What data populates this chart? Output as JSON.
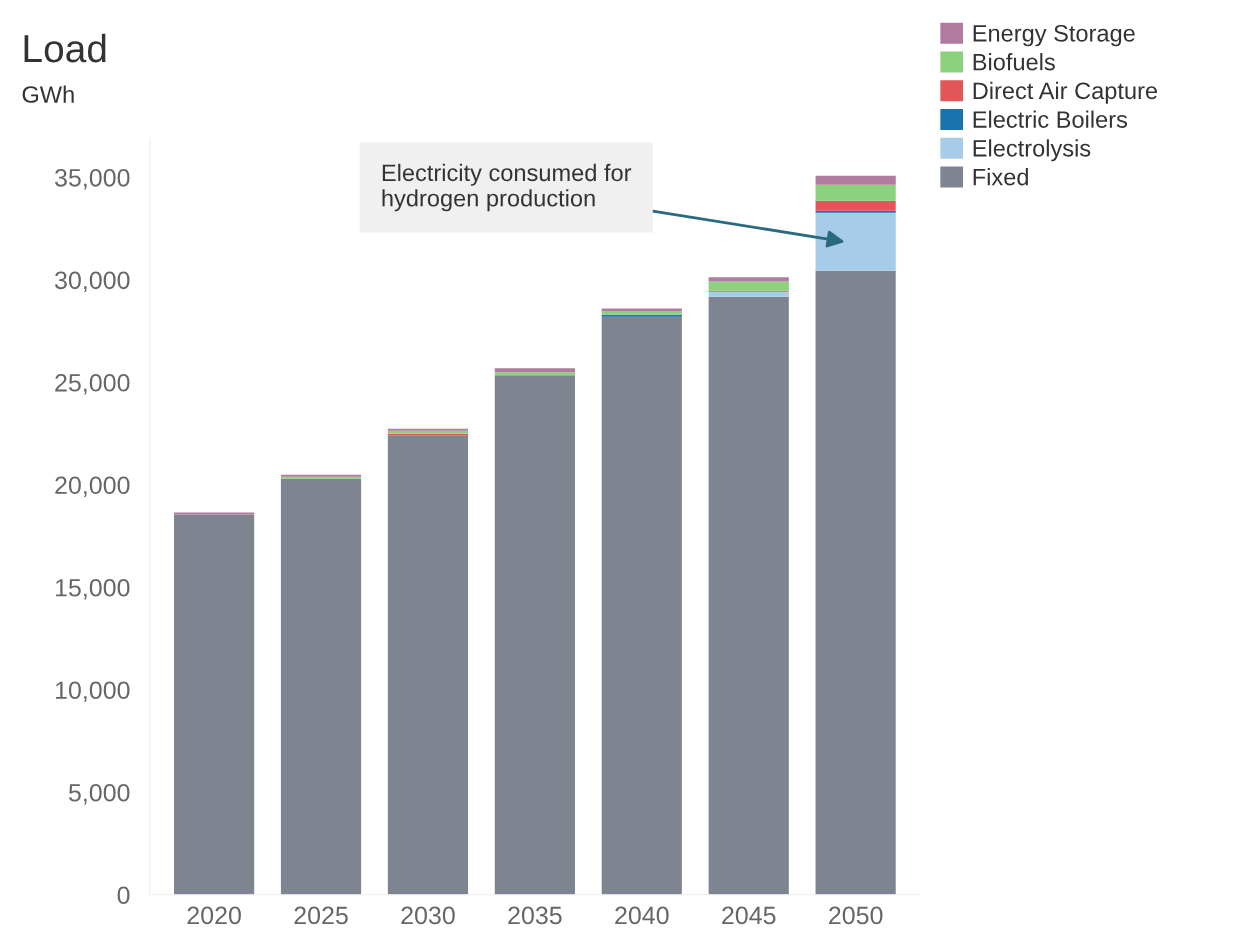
{
  "chart_data": {
    "type": "bar",
    "title": "Load",
    "subtitle": "GWh",
    "stacked": true,
    "categories": [
      "2020",
      "2025",
      "2030",
      "2035",
      "2040",
      "2045",
      "2050"
    ],
    "series": [
      {
        "name": "Fixed",
        "color": "#7f8590",
        "values": [
          18550,
          20290,
          22390,
          25340,
          28200,
          29170,
          30440
        ]
      },
      {
        "name": "Electrolysis",
        "color": "#a6cce8",
        "values": [
          null,
          null,
          null,
          null,
          null,
          250,
          2830
        ]
      },
      {
        "name": "Electric Boilers",
        "color": "#1a72ae",
        "values": [
          null,
          null,
          null,
          null,
          100,
          null,
          100
        ]
      },
      {
        "name": "Direct Air Capture",
        "color": "#e15759",
        "values": [
          null,
          null,
          100,
          null,
          null,
          50,
          490
        ]
      },
      {
        "name": "Biofuels",
        "color": "#8cd17d",
        "values": [
          null,
          100,
          150,
          150,
          150,
          450,
          780
        ]
      },
      {
        "name": "Energy Storage",
        "color": "#b07aa1",
        "values": [
          100,
          100,
          100,
          200,
          150,
          200,
          440
        ]
      }
    ],
    "ylim": [
      0,
      36900
    ],
    "yticks": [
      {
        "value": 0,
        "label": "0"
      },
      {
        "value": 5000,
        "label": "5,000"
      },
      {
        "value": 10000,
        "label": "10,000"
      },
      {
        "value": 15000,
        "label": "15,000"
      },
      {
        "value": 20000,
        "label": "20,000"
      },
      {
        "value": 25000,
        "label": "25,000"
      },
      {
        "value": 30000,
        "label": "30,000"
      },
      {
        "value": 35000,
        "label": "35,000"
      }
    ],
    "grid": false,
    "legend": "top right",
    "annotations": [
      "Electricity consumed for\nhydrogen production"
    ]
  }
}
